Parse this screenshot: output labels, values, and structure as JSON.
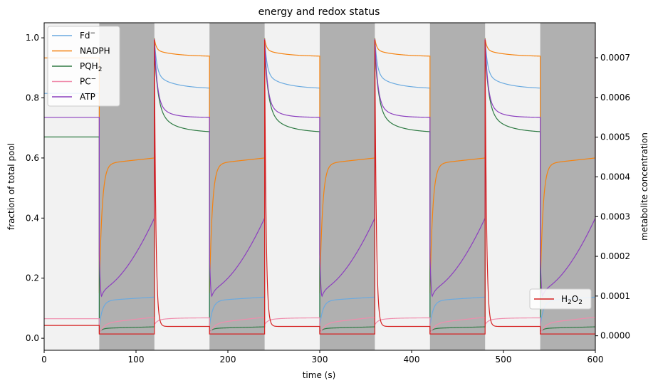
{
  "chart_data": {
    "type": "line",
    "title": "energy and redox status",
    "xlabel": "time (s)",
    "ylabel": "fraction of total pool",
    "y2label": "metabolite concentration",
    "xlim": [
      0,
      600
    ],
    "ylim": [
      -0.04,
      1.05
    ],
    "y2lim": [
      -3.65e-05,
      0.000788
    ],
    "xticks": [
      0,
      100,
      200,
      300,
      400,
      500,
      600
    ],
    "yticks": [
      0.0,
      0.2,
      0.4,
      0.6,
      0.8,
      1.0
    ],
    "ytick_labels": [
      "0.0",
      "0.2",
      "0.4",
      "0.6",
      "0.8",
      "1.0"
    ],
    "y2ticks": [
      0.0,
      0.0001,
      0.0002,
      0.0003,
      0.0004,
      0.0005,
      0.0006,
      0.0007
    ],
    "y2tick_labels": [
      "0.0000",
      "0.0001",
      "0.0002",
      "0.0003",
      "0.0004",
      "0.0005",
      "0.0006",
      "0.0007"
    ],
    "background": {
      "light": "#f2f2f2",
      "dark": "#b0b0b0",
      "dark_periods": [
        [
          60,
          120
        ],
        [
          180,
          240
        ],
        [
          300,
          360
        ],
        [
          420,
          480
        ],
        [
          540,
          600
        ]
      ]
    },
    "legend_left": {
      "position": "upper-left",
      "entries": [
        {
          "label_main": "Fd",
          "label_sup": "−",
          "color": "#6aaae0"
        },
        {
          "label_main": "NADPH",
          "label_sup": "",
          "color": "#f5820f"
        },
        {
          "label_main": "PQH",
          "label_sub": "2",
          "color": "#2e7a43"
        },
        {
          "label_main": "PC",
          "label_sup": "−",
          "color": "#f08cac"
        },
        {
          "label_main": "ATP",
          "label_sup": "",
          "color": "#8c3fbf"
        }
      ]
    },
    "legend_right": {
      "position": "lower-right",
      "entries": [
        {
          "label_main": "H",
          "label_sub": "2",
          "label_main2": "O",
          "label_sub2": "2",
          "color": "#d62020"
        }
      ]
    },
    "series": [
      {
        "name": "Fd−",
        "axis": "left",
        "color": "#6aaae0",
        "initial": 0.815,
        "dark": {
          "start": 0.04,
          "plateau": 0.125,
          "end": 0.137,
          "tau": 3.5,
          "drift": 0.012
        },
        "light": {
          "peak": 1.0,
          "mid": 0.88,
          "end": 0.835,
          "tau_fast": 2.5,
          "tau_slow": 18,
          "end_trend": 0.004
        }
      },
      {
        "name": "NADPH",
        "axis": "left",
        "color": "#f5820f",
        "initial": 0.933,
        "dark": {
          "start": 0.15,
          "plateau": 0.58,
          "end": 0.6,
          "tau": 3.0,
          "drift": 0.02
        },
        "light": {
          "peak": 0.998,
          "mid": 0.96,
          "end": 0.94,
          "tau_fast": 2.0,
          "tau_slow": 20,
          "end_trend": 0.002
        }
      },
      {
        "name": "PQH2",
        "axis": "left",
        "color": "#2e7a43",
        "initial": 0.67,
        "dark": {
          "start": 0.02,
          "plateau": 0.033,
          "end": 0.038,
          "tau": 3.0,
          "drift": 0.005
        },
        "light": {
          "peak": 0.96,
          "mid": 0.76,
          "end": 0.688,
          "tau_fast": 4.0,
          "tau_slow": 18,
          "end_trend": 0.003
        }
      },
      {
        "name": "PC−",
        "axis": "left",
        "color": "#f08cac",
        "initial": 0.065,
        "dark": {
          "start": 0.015,
          "plateau": 0.05,
          "end": 0.07,
          "tau": 5.0,
          "drift": 0.02
        },
        "light": {
          "peak": 0.045,
          "mid": 0.06,
          "end": 0.068,
          "tau_fast": 3.0,
          "tau_slow": 15,
          "end_trend": 0.0
        }
      },
      {
        "name": "ATP",
        "axis": "left",
        "color": "#8c3fbf",
        "initial": 0.735,
        "atp_dark": {
          "min": 0.14,
          "min_t": 2.5,
          "bump": 0.165,
          "end": 0.4
        },
        "light": {
          "peak": 0.995,
          "mid": 0.79,
          "end": 0.735,
          "tau_fast": 3.0,
          "tau_slow": 12,
          "end_trend": 0.0
        }
      },
      {
        "name": "H2O2",
        "axis": "right",
        "color": "#d62020",
        "initial": 2.6e-05,
        "dark_value": 4.5e-06,
        "light": {
          "peak": 0.000745,
          "end": 2.35e-05,
          "tau": 1.6
        }
      }
    ]
  }
}
